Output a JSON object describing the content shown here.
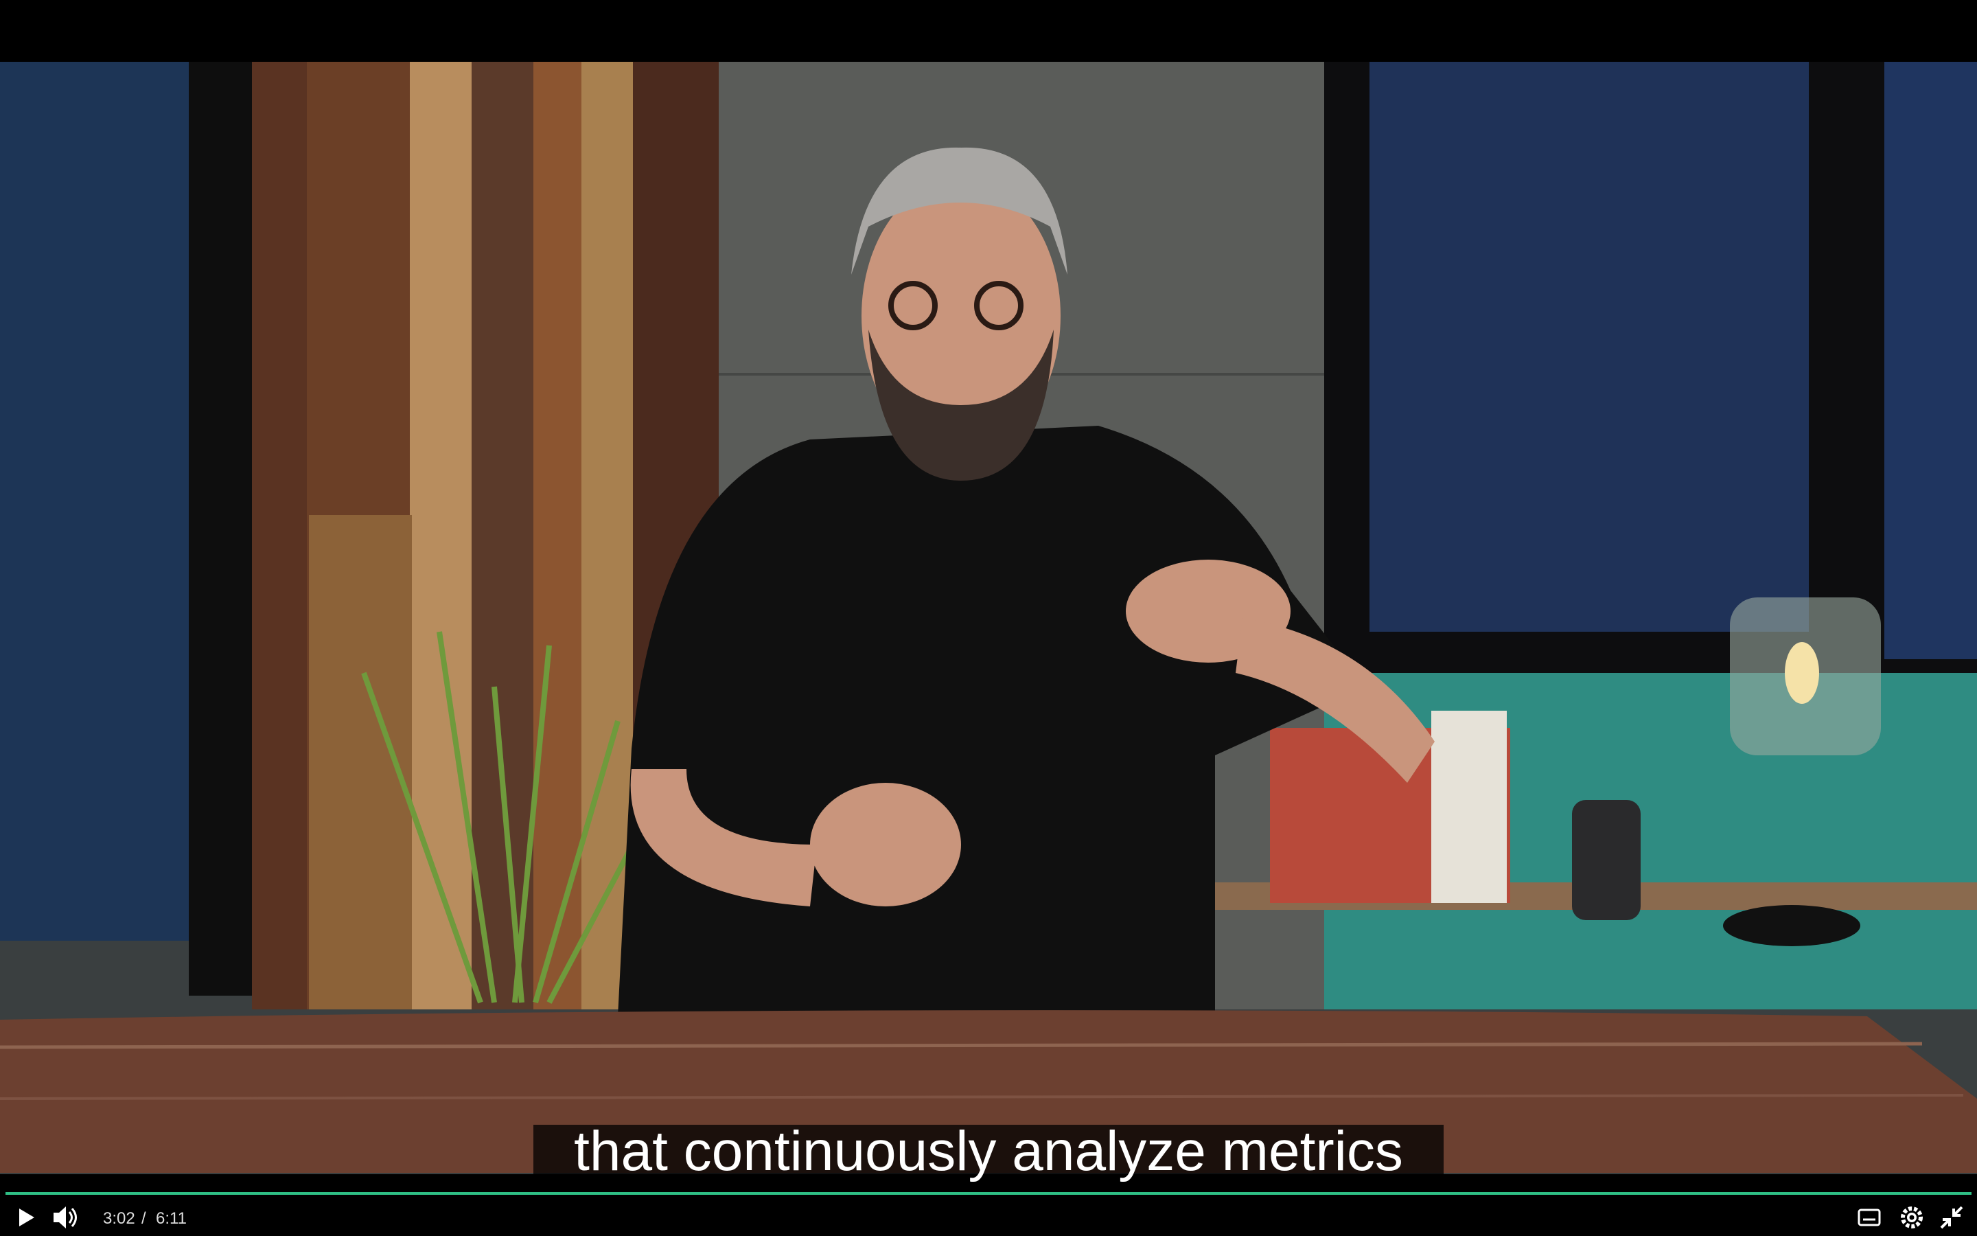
{
  "video": {
    "caption": "that continuously analyze metrics",
    "current_time": "3:02",
    "separator": "/",
    "duration": "6:11"
  }
}
